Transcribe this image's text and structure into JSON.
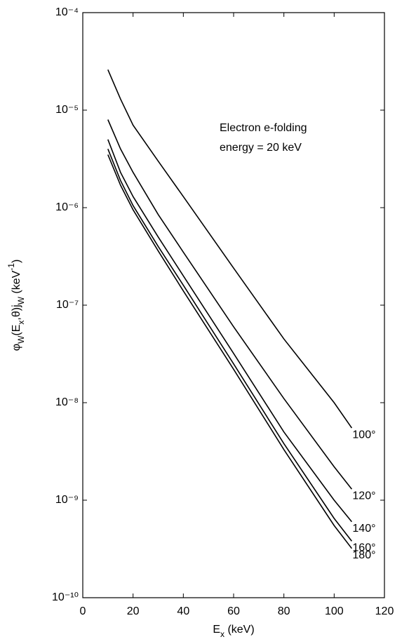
{
  "chart_data": {
    "type": "line",
    "xlabel": [
      {
        "text": "E"
      },
      {
        "text": "x",
        "shift": "sub"
      },
      {
        "text": " (keV)"
      }
    ],
    "ylabel": [
      {
        "text": "φ"
      },
      {
        "text": "W",
        "shift": "sub"
      },
      {
        "text": "(E"
      },
      {
        "text": "x",
        "shift": "sub"
      },
      {
        "text": ",θ)j"
      },
      {
        "text": "W",
        "shift": "sub"
      },
      {
        "text": " (keV"
      },
      {
        "text": "-1",
        "shift": "sup"
      },
      {
        "text": ")"
      }
    ],
    "annotation": [
      "Electron e-folding",
      "energy = 20 keV"
    ],
    "x": [
      10,
      15,
      20,
      30,
      40,
      60,
      80,
      100,
      107
    ],
    "series": [
      {
        "name": "100°",
        "color": "#000000",
        "values": [
          2.6e-05,
          1.3e-05,
          7e-06,
          3e-06,
          1.3e-06,
          2.4e-07,
          4.5e-08,
          1e-08,
          5.5e-09
        ]
      },
      {
        "name": "120°",
        "color": "#000000",
        "values": [
          8e-06,
          4e-06,
          2.3e-06,
          8.5e-07,
          3.5e-07,
          6e-08,
          1.1e-08,
          2.2e-09,
          1.3e-09
        ]
      },
      {
        "name": "140°",
        "color": "#000000",
        "values": [
          5e-06,
          2.3e-06,
          1.3e-06,
          5e-07,
          2e-07,
          3.2e-08,
          5e-09,
          1e-09,
          6e-10
        ]
      },
      {
        "name": "160°",
        "color": "#000000",
        "values": [
          4e-06,
          1.9e-06,
          1.05e-06,
          4e-07,
          1.6e-07,
          2.5e-08,
          3.8e-09,
          6.5e-10,
          3.8e-10
        ]
      },
      {
        "name": "180°",
        "color": "#000000",
        "values": [
          3.5e-06,
          1.7e-06,
          9.5e-07,
          3.6e-07,
          1.4e-07,
          2.2e-08,
          3.3e-09,
          5.5e-10,
          3.2e-10
        ]
      }
    ],
    "xlim": [
      0,
      120
    ],
    "xticks": [
      0,
      20,
      40,
      60,
      80,
      100,
      120
    ],
    "ylim": [
      1e-10,
      0.0001
    ],
    "ylog": true,
    "yticks": [
      {
        "value": 0.0001,
        "label": "10⁻⁴"
      },
      {
        "value": 1e-05,
        "label": "10⁻⁵"
      },
      {
        "value": 1e-06,
        "label": "10⁻⁶"
      },
      {
        "value": 1e-07,
        "label": "10⁻⁷"
      },
      {
        "value": 1e-08,
        "label": "10⁻⁸"
      },
      {
        "value": 1e-09,
        "label": "10⁻⁹"
      },
      {
        "value": 1e-10,
        "label": "10⁻¹⁰"
      }
    ]
  }
}
